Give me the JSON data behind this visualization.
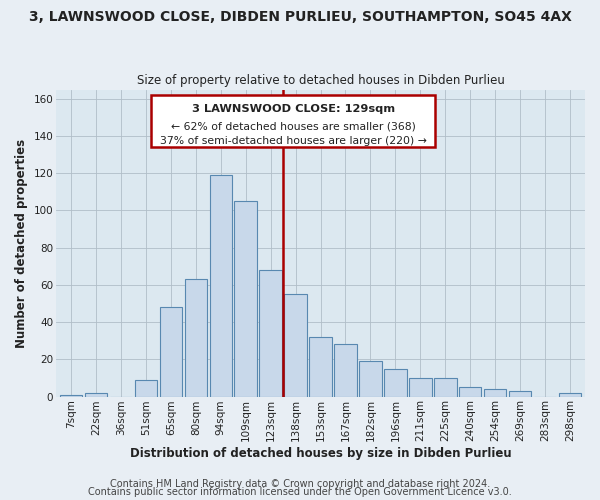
{
  "title": "3, LAWNSWOOD CLOSE, DIBDEN PURLIEU, SOUTHAMPTON, SO45 4AX",
  "subtitle": "Size of property relative to detached houses in Dibden Purlieu",
  "xlabel": "Distribution of detached houses by size in Dibden Purlieu",
  "ylabel": "Number of detached properties",
  "bin_labels": [
    "7sqm",
    "22sqm",
    "36sqm",
    "51sqm",
    "65sqm",
    "80sqm",
    "94sqm",
    "109sqm",
    "123sqm",
    "138sqm",
    "153sqm",
    "167sqm",
    "182sqm",
    "196sqm",
    "211sqm",
    "225sqm",
    "240sqm",
    "254sqm",
    "269sqm",
    "283sqm",
    "298sqm"
  ],
  "bar_heights": [
    1,
    2,
    0,
    9,
    48,
    63,
    119,
    105,
    68,
    55,
    32,
    28,
    19,
    15,
    10,
    10,
    5,
    4,
    3,
    0,
    2
  ],
  "bar_color": "#c8d8ea",
  "bar_edge_color": "#5888b0",
  "vline_x": 8.5,
  "vline_color": "#aa0000",
  "annotation_title": "3 LAWNSWOOD CLOSE: 129sqm",
  "annotation_line1": "← 62% of detached houses are smaller (368)",
  "annotation_line2": "37% of semi-detached houses are larger (220) →",
  "annotation_box_color": "#ffffff",
  "annotation_box_edge_color": "#aa0000",
  "ylim": [
    0,
    165
  ],
  "yticks": [
    0,
    20,
    40,
    60,
    80,
    100,
    120,
    140,
    160
  ],
  "footer1": "Contains HM Land Registry data © Crown copyright and database right 2024.",
  "footer2": "Contains public sector information licensed under the Open Government Licence v3.0.",
  "background_color": "#e8eef4",
  "plot_background_color": "#dce8f0",
  "title_fontsize": 10,
  "subtitle_fontsize": 8.5,
  "axis_label_fontsize": 8.5,
  "tick_fontsize": 7.5,
  "footer_fontsize": 7
}
